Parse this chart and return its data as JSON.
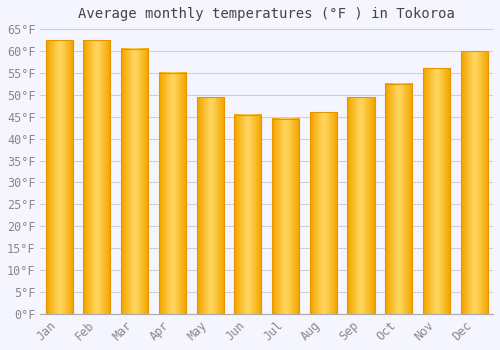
{
  "title": "Average monthly temperatures (°F ) in Tokoroa",
  "months": [
    "Jan",
    "Feb",
    "Mar",
    "Apr",
    "May",
    "Jun",
    "Jul",
    "Aug",
    "Sep",
    "Oct",
    "Nov",
    "Dec"
  ],
  "values": [
    62.5,
    62.5,
    60.5,
    55,
    49.5,
    45.5,
    44.5,
    46,
    49.5,
    52.5,
    56,
    60
  ],
  "bar_color_left": "#F5A800",
  "bar_color_center": "#FFD966",
  "bar_color_right": "#F5A800",
  "bar_edge_color": "#E89400",
  "ylim": [
    0,
    65
  ],
  "ytick_step": 5,
  "background_color": "#f5f5ff",
  "plot_bg_color": "#f5f5ff",
  "grid_color": "#ccccdd",
  "title_fontsize": 10,
  "tick_fontsize": 8.5,
  "title_color": "#444444",
  "tick_color": "#888888"
}
